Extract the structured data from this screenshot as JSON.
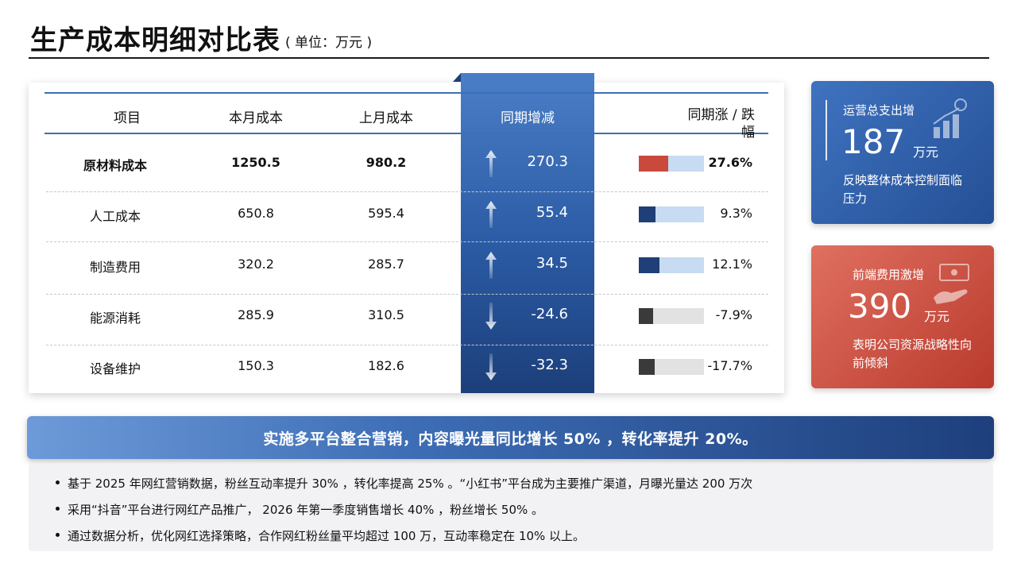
{
  "title": "生产成本明细对比表",
  "unit": "( 单位：万元 )",
  "table": {
    "headers": [
      "项目",
      "本月成本",
      "上月成本",
      "同期增减",
      "同期涨 / 跌幅"
    ],
    "rows": [
      {
        "item": "原材料成本",
        "current": "1250.5",
        "previous": "980.2",
        "delta": "270.3",
        "direction": "up",
        "pct": "27.6%",
        "ratio": 0.45,
        "bar_color": "#c94a3c",
        "track_color": "#c7dbf2",
        "bold": true
      },
      {
        "item": "人工成本",
        "current": "650.8",
        "previous": "595.4",
        "delta": "55.4",
        "direction": "up",
        "pct": "9.3%",
        "ratio": 0.25,
        "bar_color": "#1f3f78",
        "track_color": "#c7dbf2",
        "bold": false
      },
      {
        "item": "制造费用",
        "current": "320.2",
        "previous": "285.7",
        "delta": "34.5",
        "direction": "up",
        "pct": "12.1%",
        "ratio": 0.32,
        "bar_color": "#1f3f78",
        "track_color": "#c7dbf2",
        "bold": false
      },
      {
        "item": "能源消耗",
        "current": "285.9",
        "previous": "310.5",
        "delta": "-24.6",
        "direction": "down",
        "pct": "-7.9%",
        "ratio": 0.22,
        "bar_color": "#3a3a3a",
        "track_color": "#e2e2e2",
        "bold": false
      },
      {
        "item": "设备维护",
        "current": "150.3",
        "previous": "182.6",
        "delta": "-32.3",
        "direction": "down",
        "pct": "-17.7%",
        "ratio": 0.24,
        "bar_color": "#3a3a3a",
        "track_color": "#e2e2e2",
        "bold": false
      }
    ]
  },
  "kpi_blue": {
    "label": "运营总支出增",
    "value": "187",
    "unit": "万元",
    "desc": "反映整体成本控制面临压力",
    "icon": "growth-chart-icon"
  },
  "kpi_red": {
    "label": "前端费用激增",
    "value": "390",
    "unit": "万元",
    "desc": "表明公司资源战略性向前倾斜",
    "icon": "money-hand-icon"
  },
  "banner": "实施多平台整合营销，内容曝光量同比增长 50% ，转化率提升 20%。",
  "notes": [
    "基于 2025 年网红营销数据，粉丝互动率提升 30% ，转化率提高 25% 。“小红书”平台成为主要推广渠道，月曝光量达 200 万次",
    "采用“抖音”平台进行网红产品推广， 2026 年第一季度销售增长 40% ，粉丝增长 50% 。",
    "通过数据分析，优化网红选择策略，合作网红粉丝量平均超过 100 万，互动率稳定在 10% 以上。"
  ],
  "colors": {
    "accent_blue": "#2a5aa3",
    "accent_red": "#c94a3c",
    "dark_navy": "#1f3f78"
  }
}
